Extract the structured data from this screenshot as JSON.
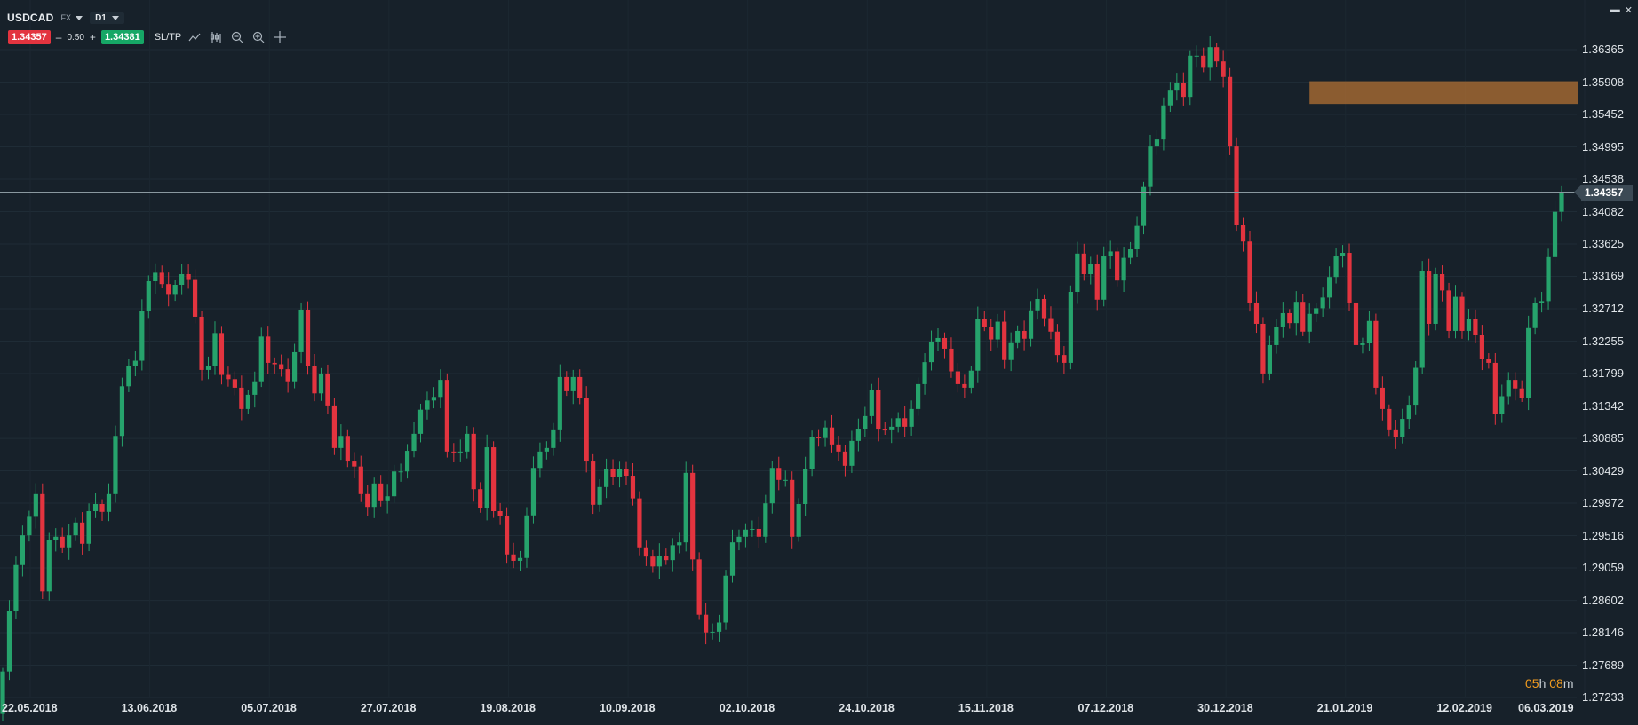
{
  "header": {
    "symbol": "USDCAD",
    "market": "FX",
    "timeframe": "D1"
  },
  "trade": {
    "sell_price": "1.34357",
    "minus": "–",
    "quantity": "0.50",
    "plus": "+",
    "buy_price": "1.34381",
    "sltp_label": "SL/TP"
  },
  "tools": [
    "line-chart-icon",
    "candles-icon",
    "zoom-out-icon",
    "zoom-in-icon",
    "crosshair-icon"
  ],
  "window_controls": {
    "restore": "▬",
    "close": "✕"
  },
  "current_price": "1.34357",
  "countdown": {
    "h": "05",
    "h_unit": "h",
    "m": "08",
    "m_unit": "m"
  },
  "colors": {
    "up": "#26a36c",
    "down": "#e3343f",
    "zone": "#b87333",
    "background": "#17212a"
  },
  "chart_data": {
    "type": "candlestick",
    "symbol": "USDCAD",
    "price_axis": [
      "1.36365",
      "1.35908",
      "1.35452",
      "1.34995",
      "1.34538",
      "1.34082",
      "1.33625",
      "1.33169",
      "1.32712",
      "1.32255",
      "1.31799",
      "1.31342",
      "1.30885",
      "1.30429",
      "1.29972",
      "1.29516",
      "1.29059",
      "1.28602",
      "1.28146",
      "1.27689",
      "1.27233"
    ],
    "date_axis": [
      "22.05.2018",
      "13.06.2018",
      "05.07.2018",
      "27.07.2018",
      "19.08.2018",
      "10.09.2018",
      "02.10.2018",
      "24.10.2018",
      "15.11.2018",
      "07.12.2018",
      "30.12.2018",
      "21.01.2019",
      "12.02.2019",
      "06.03.2019"
    ],
    "y_range": [
      1.27233,
      1.36365
    ],
    "current_price": 1.34357,
    "zone": {
      "from": "2018-12-18",
      "to": "2019-03-06",
      "low": 1.356,
      "high": 1.3592
    },
    "closes": [
      1.276,
      1.2845,
      1.291,
      1.2952,
      1.2978,
      1.301,
      1.2873,
      1.2945,
      1.295,
      1.2935,
      1.2952,
      1.297,
      1.294,
      1.2986,
      1.2996,
      1.2985,
      1.301,
      1.3092,
      1.3162,
      1.319,
      1.3198,
      1.3268,
      1.331,
      1.3322,
      1.3306,
      1.3292,
      1.3305,
      1.332,
      1.3313,
      1.326,
      1.3185,
      1.319,
      1.3237,
      1.3178,
      1.3172,
      1.316,
      1.313,
      1.315,
      1.3169,
      1.3232,
      1.3195,
      1.3193,
      1.3186,
      1.3169,
      1.321,
      1.327,
      1.319,
      1.3152,
      1.318,
      1.3135,
      1.3075,
      1.3092,
      1.3056,
      1.3049,
      1.301,
      1.2992,
      1.3025,
      1.3,
      1.3007,
      1.3042,
      1.3042,
      1.3071,
      1.3095,
      1.3129,
      1.3142,
      1.3147,
      1.3171,
      1.307,
      1.3069,
      1.307,
      1.3095,
      1.3017,
      1.299,
      1.3076,
      1.2986,
      1.2979,
      1.2925,
      1.2916,
      1.292,
      1.298,
      1.3047,
      1.307,
      1.3075,
      1.31,
      1.3175,
      1.3155,
      1.3175,
      1.3145,
      1.3056,
      1.2995,
      1.302,
      1.3045,
      1.3034,
      1.3045,
      1.3036,
      1.3004,
      1.2935,
      1.2922,
      1.2908,
      1.2923,
      1.2917,
      1.2938,
      1.2942,
      1.304,
      1.2918,
      1.284,
      1.2815,
      1.2816,
      1.2829,
      1.2895,
      1.2942,
      1.295,
      1.296,
      1.2961,
      1.295,
      1.2997,
      1.3047,
      1.303,
      1.303,
      1.295,
      1.2996,
      1.3045,
      1.309,
      1.3089,
      1.3104,
      1.308,
      1.307,
      1.305,
      1.3085,
      1.3102,
      1.312,
      1.3157,
      1.3101,
      1.31,
      1.3105,
      1.3117,
      1.3105,
      1.313,
      1.3165,
      1.3196,
      1.3225,
      1.323,
      1.3215,
      1.3183,
      1.3165,
      1.316,
      1.3184,
      1.3257,
      1.3246,
      1.3228,
      1.3253,
      1.3199,
      1.3224,
      1.324,
      1.3229,
      1.3269,
      1.3285,
      1.3258,
      1.3239,
      1.3206,
      1.3195,
      1.3295,
      1.3349,
      1.332,
      1.3335,
      1.3284,
      1.3345,
      1.3352,
      1.3311,
      1.3343,
      1.3355,
      1.3388,
      1.3443,
      1.35,
      1.351,
      1.3558,
      1.358,
      1.3589,
      1.357,
      1.3628,
      1.3628,
      1.3611,
      1.364,
      1.362,
      1.3598,
      1.35,
      1.339,
      1.3366,
      1.328,
      1.325,
      1.318,
      1.322,
      1.3245,
      1.3265,
      1.3251,
      1.3281,
      1.3239,
      1.3264,
      1.3272,
      1.3287,
      1.3316,
      1.3345,
      1.335,
      1.328,
      1.322,
      1.3223,
      1.3254,
      1.316,
      1.313,
      1.31,
      1.3091,
      1.3116,
      1.3136,
      1.3188,
      1.3325,
      1.325,
      1.332,
      1.3297,
      1.324,
      1.3288,
      1.324,
      1.3257,
      1.3234,
      1.3201,
      1.3195,
      1.3123,
      1.3148,
      1.3171,
      1.3159,
      1.3146,
      1.3244,
      1.328,
      1.3282,
      1.3344,
      1.3408,
      1.3436
    ]
  }
}
